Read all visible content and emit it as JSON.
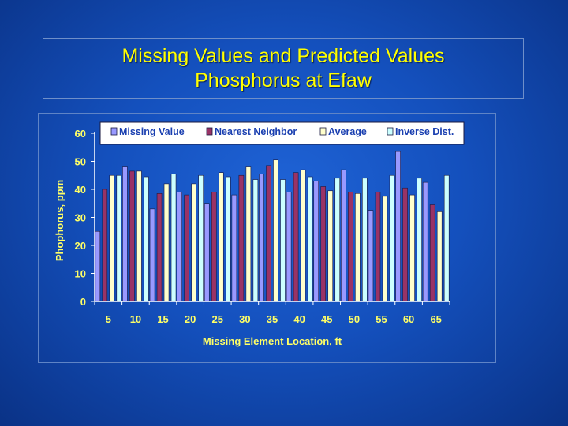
{
  "slide": {
    "title_line1": "Missing Values and Predicted Values",
    "title_line2": "Phosphorus at Efaw"
  },
  "colors": {
    "background": "#1450bd",
    "title": "#ffff00",
    "axis_text": "#ffff66",
    "missing_value": "#9999ff",
    "nearest_neighbor": "#993366",
    "average": "#ffffcc",
    "inverse_dist": "#ccffff"
  },
  "chart_data": {
    "type": "bar",
    "title": "",
    "xlabel": "Missing Element Location, ft",
    "ylabel": "Phophorus, ppm",
    "ylim": [
      0,
      60
    ],
    "yticks": [
      0,
      10,
      20,
      30,
      40,
      50,
      60
    ],
    "grid": false,
    "legend_position": "top",
    "categories": [
      "5",
      "10",
      "15",
      "20",
      "25",
      "30",
      "35",
      "40",
      "45",
      "50",
      "55",
      "60",
      "65"
    ],
    "series": [
      {
        "name": "Missing Value",
        "color": "#9999ff",
        "values": [
          25,
          48,
          33,
          39,
          35,
          38,
          45.5,
          39,
          43,
          47,
          32.5,
          53.5,
          42.5
        ]
      },
      {
        "name": "Nearest Neighbor",
        "color": "#993366",
        "values": [
          40,
          46.5,
          38.5,
          38,
          39,
          45,
          48.5,
          46,
          41,
          39,
          39,
          40.5,
          34.5
        ]
      },
      {
        "name": "Average",
        "color": "#ffffcc",
        "values": [
          45,
          46.5,
          42,
          42,
          46,
          48,
          50.5,
          47,
          39.5,
          38.5,
          37.5,
          38,
          32
        ]
      },
      {
        "name": "Inverse Dist.",
        "color": "#ccffff",
        "values": [
          45,
          44.5,
          45.5,
          45,
          44.5,
          43.5,
          43.5,
          44.5,
          44,
          44,
          45,
          44,
          45
        ]
      }
    ]
  }
}
